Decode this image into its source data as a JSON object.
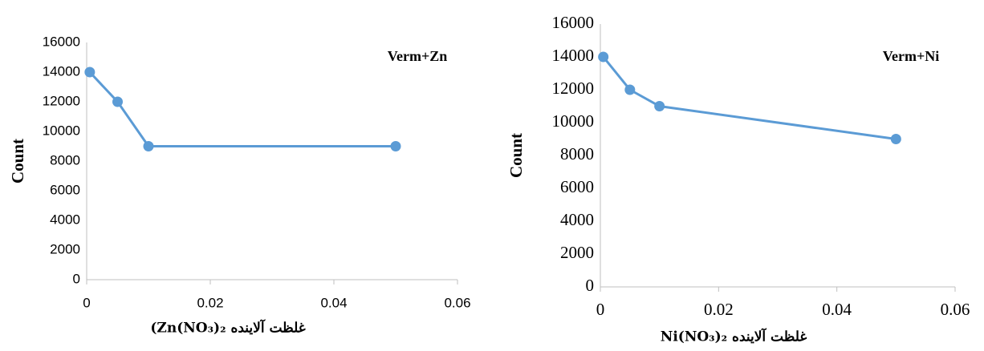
{
  "chart_data": [
    {
      "type": "line",
      "title": "Verm+Zn",
      "x_label": "(Zn(NO₃)₂ غلظت آلاینده",
      "y_label": "Count",
      "x": [
        0.0005,
        0.005,
        0.01,
        0.05
      ],
      "series": [
        {
          "name": "Verm+Zn",
          "color": "#5b9bd5",
          "values": [
            14000,
            12000,
            9000,
            9000
          ]
        }
      ],
      "xlim": [
        0,
        0.06
      ],
      "xticks": [
        0,
        0.02,
        0.04,
        0.06
      ],
      "ylim": [
        0,
        16000
      ],
      "yticks": [
        0,
        2000,
        4000,
        6000,
        8000,
        10000,
        12000,
        14000,
        16000
      ],
      "grid": false
    },
    {
      "type": "line",
      "title": "Verm+Ni",
      "x_label": "Ni(NO₃)₂ غلظت آلاینده",
      "y_label": "Count",
      "x": [
        0.0005,
        0.005,
        0.01,
        0.05
      ],
      "series": [
        {
          "name": "Verm+Ni",
          "color": "#5b9bd5",
          "values": [
            14000,
            12000,
            11000,
            9000
          ]
        }
      ],
      "xlim": [
        0,
        0.06
      ],
      "xticks": [
        0,
        0.02,
        0.04,
        0.06
      ],
      "ylim": [
        0,
        16000
      ],
      "yticks": [
        0,
        2000,
        4000,
        6000,
        8000,
        10000,
        12000,
        14000,
        16000
      ],
      "grid": false
    }
  ]
}
